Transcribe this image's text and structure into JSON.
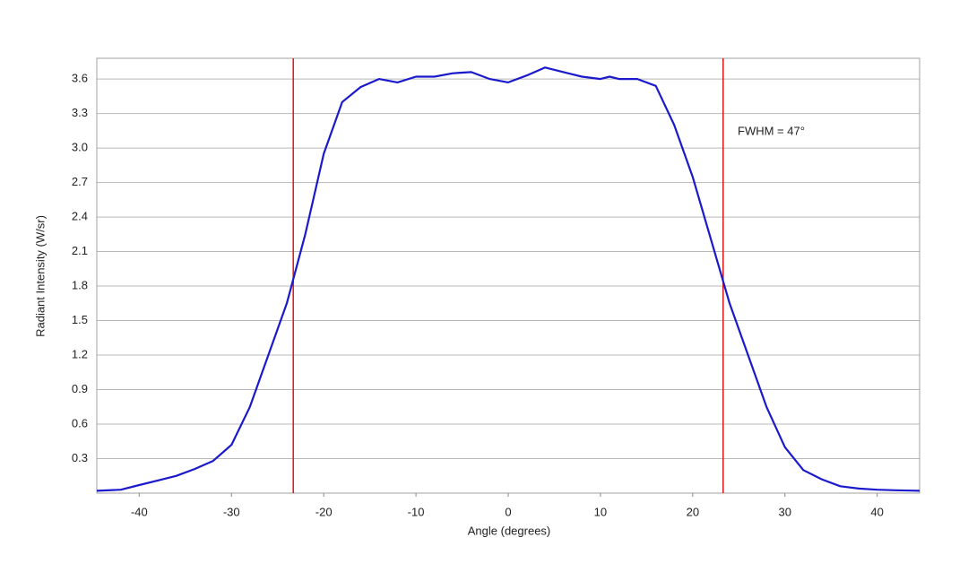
{
  "chart_data": {
    "type": "line",
    "xlabel": "Angle (degrees)",
    "ylabel": "Radiant Intensity (W/sr)",
    "annotation": "FWHM = 47°",
    "x": [
      -44.6,
      -42,
      -40,
      -38,
      -36,
      -34,
      -32,
      -30,
      -28,
      -26,
      -24,
      -22,
      -20,
      -18,
      -16,
      -14,
      -12,
      -10,
      -8,
      -6,
      -4,
      -2,
      0,
      2,
      4,
      6,
      8,
      10,
      11,
      12,
      14,
      16,
      18,
      20,
      22,
      24,
      26,
      28,
      30,
      32,
      34,
      36,
      38,
      40,
      42,
      44.6
    ],
    "series": [
      {
        "color": "#1a1acc",
        "values": [
          0.02,
          0.03,
          0.07,
          0.11,
          0.15,
          0.21,
          0.28,
          0.42,
          0.75,
          1.2,
          1.65,
          2.25,
          2.95,
          3.4,
          3.53,
          3.6,
          3.57,
          3.62,
          3.62,
          3.65,
          3.66,
          3.6,
          3.57,
          3.63,
          3.7,
          3.66,
          3.62,
          3.6,
          3.62,
          3.6,
          3.6,
          3.54,
          3.2,
          2.75,
          2.2,
          1.65,
          1.2,
          0.75,
          0.4,
          0.2,
          0.12,
          0.06,
          0.04,
          0.03,
          0.025,
          0.02
        ]
      }
    ],
    "vlines": [
      -23.3,
      23.3
    ],
    "vline_color": "#dd2222",
    "xlim": [
      -44.6,
      44.6
    ],
    "xticks": [
      -40,
      -30,
      -20,
      -10,
      0,
      10,
      20,
      30,
      40
    ],
    "ylim": [
      0,
      3.78
    ],
    "yticks": [
      0.3,
      0.6,
      0.9,
      1.2,
      1.5,
      1.8,
      2.1,
      2.4,
      2.7,
      {
        "value": 3,
        "label": "3.0"
      },
      3.3,
      3.6
    ],
    "grid": true
  }
}
